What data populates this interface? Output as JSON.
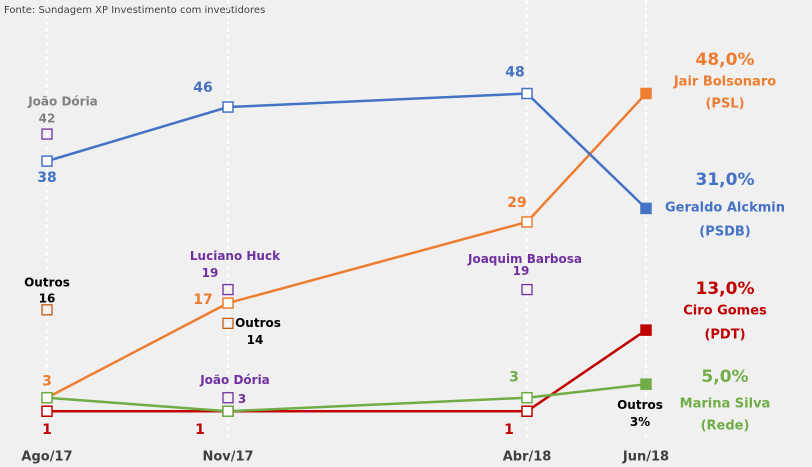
{
  "chart_data": {
    "type": "line",
    "source": "Fonte: Sondagem XP Investimento com investidores",
    "categories": [
      "Ago/17",
      "Nov/17",
      "Abr/18",
      "Jun/18"
    ],
    "ylim": [
      0,
      50
    ],
    "series": [
      {
        "name": "Jair Bolsonaro",
        "party": "(PSL)",
        "color": "#ed7d31",
        "values": [
          3,
          17,
          29,
          48
        ],
        "value_labels": [
          "3",
          "17",
          "29",
          "48,0%"
        ]
      },
      {
        "name": "Geraldo Alckmin",
        "party": "(PSDB)",
        "color": "#4472c4",
        "values": [
          38,
          46,
          48,
          31
        ],
        "value_labels": [
          "38",
          "46",
          "48",
          "31,0%"
        ]
      },
      {
        "name": "Ciro Gomes",
        "party": "(PDT)",
        "color": "#c00000",
        "values": [
          1,
          1,
          1,
          13
        ],
        "value_labels": [
          "1",
          "1",
          "1",
          "13,0%"
        ]
      },
      {
        "name": "Marina Silva",
        "party": "(Rede)",
        "color": "#70ad47",
        "values": [
          3,
          1,
          3,
          5
        ],
        "value_labels": [
          null,
          null,
          "3",
          "5,0%"
        ]
      }
    ],
    "annotations": [
      {
        "name": "João Dória",
        "x": "Ago/17",
        "value": 42,
        "color": "#808080",
        "marker_color": "#7030a0",
        "marker": true
      },
      {
        "name": "Luciano Huck",
        "x": "Nov/17",
        "value": 19,
        "color": "#7030a0",
        "marker_color": "#7030a0",
        "marker": true
      },
      {
        "name": "Joaquim Barbosa",
        "x": "Abr/18",
        "value": 19,
        "color": "#7030a0",
        "marker_color": "#7030a0",
        "marker": true
      },
      {
        "name": "João Dória",
        "x": "Nov/17",
        "value": 3,
        "color": "#7030a0",
        "marker_color": "#7030a0",
        "marker": true
      },
      {
        "name": "Outros",
        "x": "Ago/17",
        "value": 16,
        "color": "#000000",
        "marker_color": "#c55a11",
        "marker": true
      },
      {
        "name": "Outros",
        "x": "Nov/17",
        "value": 14,
        "color": "#000000",
        "marker_color": "#c55a11",
        "marker": true
      },
      {
        "name": "Outros",
        "x": "Jun/18",
        "value": 3,
        "value_label": "3%",
        "color": "#000000",
        "marker_color": "#c55a11",
        "marker": false
      }
    ]
  }
}
